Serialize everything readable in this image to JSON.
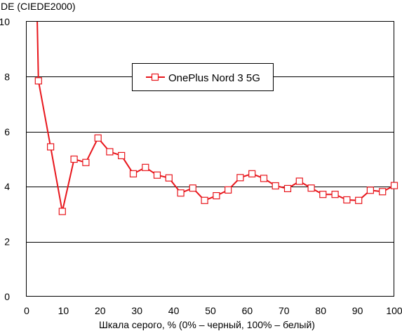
{
  "chart_data": {
    "type": "line",
    "title": "",
    "xlabel": "Шкала серого, % (0% – черный, 100% – белый)",
    "ylabel": "DE (CIEDE2000)",
    "xlim": [
      0,
      100
    ],
    "ylim": [
      0,
      10
    ],
    "xticks": [
      0,
      10,
      20,
      30,
      40,
      50,
      60,
      70,
      80,
      90,
      100
    ],
    "yticks": [
      0,
      2,
      4,
      6,
      8,
      10
    ],
    "grid": "horizontal",
    "legend_position": "top-center",
    "series": [
      {
        "name": "OnePlus Nord 3 5G",
        "color": "#e8161c",
        "marker": "square-open",
        "x": [
          3.2,
          6.5,
          9.7,
          12.9,
          16.1,
          19.4,
          22.6,
          25.8,
          29.0,
          32.3,
          35.5,
          38.7,
          41.9,
          45.2,
          48.4,
          51.6,
          54.8,
          58.1,
          61.3,
          64.5,
          67.7,
          71.0,
          74.2,
          77.4,
          80.6,
          83.9,
          87.1,
          90.3,
          93.5,
          96.8,
          100.0
        ],
        "y": [
          7.85,
          5.45,
          3.1,
          5.0,
          4.88,
          5.77,
          5.27,
          5.13,
          4.47,
          4.7,
          4.42,
          4.32,
          3.77,
          3.95,
          3.5,
          3.67,
          3.88,
          4.33,
          4.47,
          4.3,
          4.03,
          3.93,
          4.2,
          3.95,
          3.72,
          3.72,
          3.52,
          3.5,
          3.87,
          3.82,
          4.04
        ]
      }
    ],
    "off_chart_start": {
      "x": 2.8,
      "y": 10.5
    }
  }
}
